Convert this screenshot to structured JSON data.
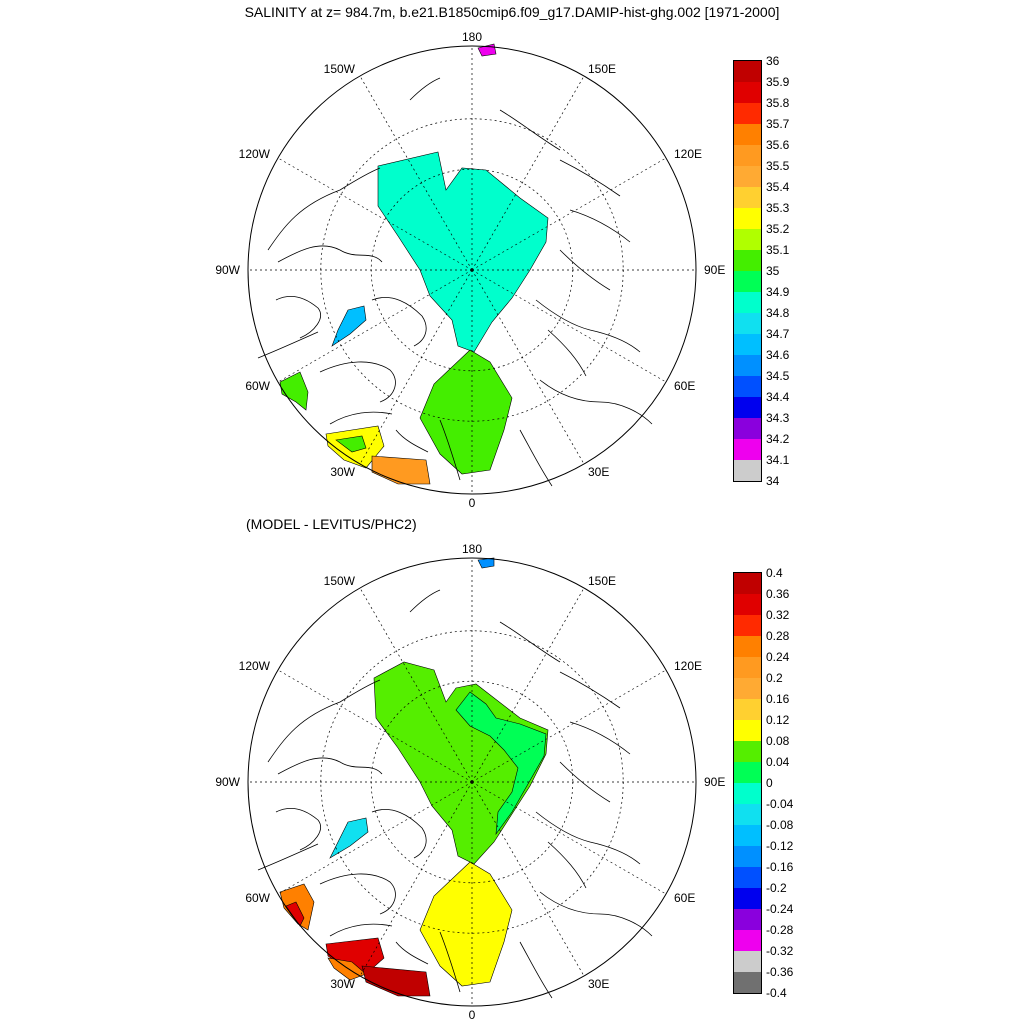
{
  "page": {
    "title": "SALINITY at z= 984.7m, b.e21.B1850cmip6.f09_g17.DAMIP-hist-ghg.002 [1971-2000]",
    "subtitle": "(MODEL - LEVITUS/PHC2)"
  },
  "map_labels": {
    "lon180": "180",
    "lon0": "0",
    "w150": "150W",
    "e150": "150E",
    "w120": "120W",
    "e120": "120E",
    "w90": "90W",
    "e90": "90E",
    "w60": "60W",
    "e60": "60E",
    "w30": "30W",
    "e30": "30E"
  },
  "colorbar_top": {
    "labels": [
      "36",
      "35.9",
      "35.8",
      "35.7",
      "35.6",
      "35.5",
      "35.4",
      "35.3",
      "35.2",
      "35.1",
      "35",
      "34.9",
      "34.8",
      "34.7",
      "34.6",
      "34.5",
      "34.4",
      "34.3",
      "34.2",
      "34.1",
      "34"
    ],
    "colors": [
      "#c00000",
      "#e00000",
      "#ff2a00",
      "#ff8000",
      "#ff9a20",
      "#ffaa33",
      "#ffd030",
      "#ffff00",
      "#b0ff00",
      "#44ee00",
      "#00ff55",
      "#00ffcc",
      "#10e0f0",
      "#00bfff",
      "#0090ff",
      "#0050ff",
      "#0000ee",
      "#8a00dd",
      "#ee00ee",
      "#cccccc"
    ]
  },
  "colorbar_bottom": {
    "labels": [
      "0.4",
      "0.36",
      "0.32",
      "0.28",
      "0.24",
      "0.2",
      "0.16",
      "0.12",
      "0.08",
      "0.04",
      "0",
      "-0.04",
      "-0.08",
      "-0.12",
      "-0.16",
      "-0.2",
      "-0.24",
      "-0.28",
      "-0.32",
      "-0.36",
      "-0.4"
    ],
    "colors": [
      "#c00000",
      "#e00000",
      "#ff2a00",
      "#ff8000",
      "#ff9a20",
      "#ffaa33",
      "#ffd030",
      "#ffff00",
      "#55ee00",
      "#00ff55",
      "#00ffcc",
      "#10e0f0",
      "#00bfff",
      "#0090ff",
      "#0050ff",
      "#0000ee",
      "#8a00dd",
      "#ee00ee",
      "#cccccc",
      "#707070"
    ]
  },
  "regions_top": {
    "central_arctic": "#00ffcc",
    "nordic_seas": "#44ee00",
    "baffin_bay": "#00bfff",
    "labrador_sea": "#44ee00",
    "north_atlantic_a": "#ffff00",
    "north_atlantic_b": "#ff9a20",
    "north_atlantic_c": "#44ee00",
    "bering": "#ee00ee"
  },
  "regions_bottom": {
    "central_arctic": "#55ee00",
    "eurasian_basin": "#00ff55",
    "nordic_seas": "#ffff00",
    "baffin_bay": "#10e0f0",
    "labrador_sea": "#ff8000",
    "labrador_inner": "#e00000",
    "north_atlantic_a": "#e00000",
    "north_atlantic_b": "#ff8000",
    "north_atlantic_c": "#c00000",
    "bering": "#0090ff"
  }
}
